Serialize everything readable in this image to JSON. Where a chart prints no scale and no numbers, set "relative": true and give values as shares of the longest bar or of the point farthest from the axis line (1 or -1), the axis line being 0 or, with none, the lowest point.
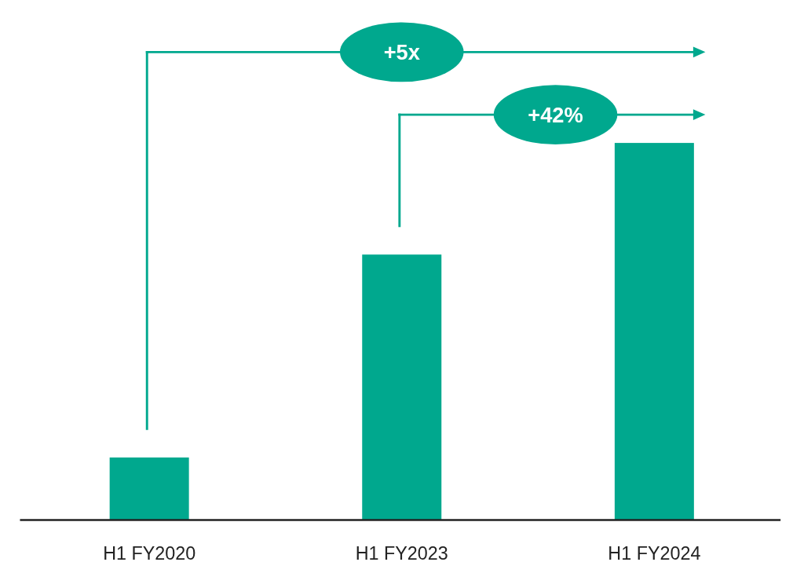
{
  "chart_data": {
    "type": "bar",
    "relative": true,
    "categories": [
      "H1 FY2020",
      "H1 FY2023",
      "H1 FY2024"
    ],
    "values": [
      0.166,
      0.704,
      1
    ],
    "color": "#00a88e",
    "annotations": [
      "+5x",
      "+42%"
    ]
  }
}
